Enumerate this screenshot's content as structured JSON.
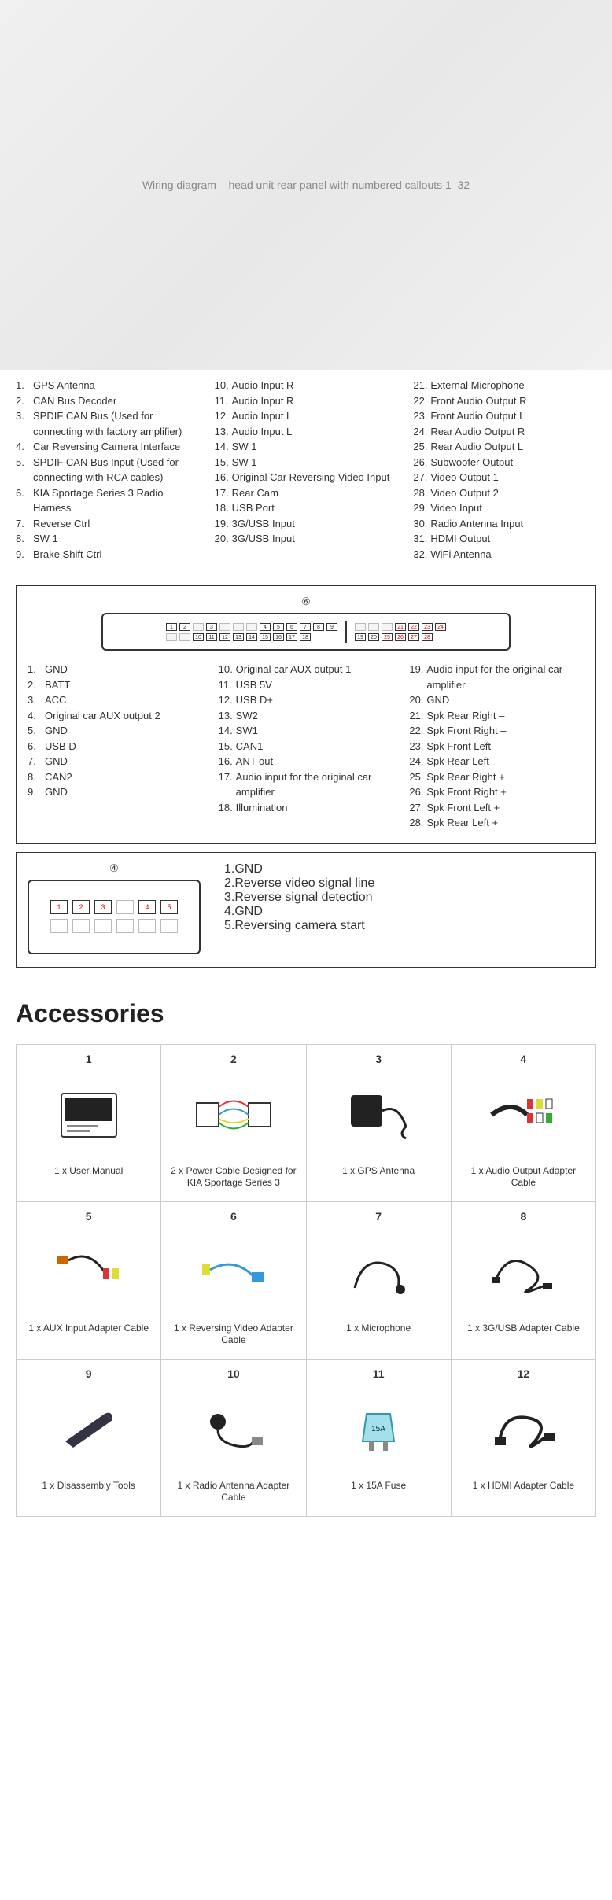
{
  "hero_alt": "Wiring diagram – head unit rear panel with numbered callouts 1–32",
  "main_legend": {
    "col1": [
      {
        "n": "1.",
        "t": "GPS Antenna"
      },
      {
        "n": "2.",
        "t": "CAN Bus Decoder"
      },
      {
        "n": "3.",
        "t": "SPDIF CAN Bus (Used for connecting with factory amplifier)"
      },
      {
        "n": "4.",
        "t": "Car Reversing Camera Interface"
      },
      {
        "n": "5.",
        "t": "SPDIF CAN Bus Input (Used for connecting with RCA cables)"
      },
      {
        "n": "6.",
        "t": "KIA Sportage Series 3 Radio Harness"
      },
      {
        "n": "7.",
        "t": "Reverse Ctrl"
      },
      {
        "n": "8.",
        "t": "SW 1"
      },
      {
        "n": "9.",
        "t": "Brake Shift Ctrl"
      }
    ],
    "col2": [
      {
        "n": "10.",
        "t": "Audio Input R"
      },
      {
        "n": "11.",
        "t": "Audio Input R"
      },
      {
        "n": "12.",
        "t": "Audio Input L"
      },
      {
        "n": "13.",
        "t": "Audio Input L"
      },
      {
        "n": "14.",
        "t": "SW 1"
      },
      {
        "n": "15.",
        "t": "SW 1"
      },
      {
        "n": "16.",
        "t": "Original Car Reversing Video Input"
      },
      {
        "n": "17.",
        "t": "Rear Cam"
      },
      {
        "n": "18.",
        "t": "USB Port"
      },
      {
        "n": "19.",
        "t": "3G/USB Input"
      },
      {
        "n": "20.",
        "t": "3G/USB Input"
      }
    ],
    "col3": [
      {
        "n": "21.",
        "t": "External Microphone"
      },
      {
        "n": "22.",
        "t": "Front Audio Output R"
      },
      {
        "n": "23.",
        "t": "Front Audio Output L"
      },
      {
        "n": "24.",
        "t": "Rear Audio Output R"
      },
      {
        "n": "25.",
        "t": "Rear Audio Output L"
      },
      {
        "n": "26.",
        "t": "Subwoofer Output"
      },
      {
        "n": "27.",
        "t": "Video Output 1"
      },
      {
        "n": "28.",
        "t": "Video Output 2"
      },
      {
        "n": "29.",
        "t": "Video Input"
      },
      {
        "n": "30.",
        "t": "Radio Antenna Input"
      },
      {
        "n": "31.",
        "t": "HDMI Output"
      },
      {
        "n": "32.",
        "t": "WiFi Antenna"
      }
    ]
  },
  "box6": {
    "number": "⑥",
    "pins_top_left": [
      "1",
      "2",
      "",
      "3",
      "",
      "",
      "",
      "4",
      "5"
    ],
    "pins_bot_left": [
      "",
      "",
      "10",
      "11",
      "12",
      "13",
      "14",
      "15",
      "16",
      "17",
      "18"
    ],
    "pins_top_right_red": [
      "",
      "",
      "",
      "21",
      "22",
      "23",
      "24"
    ],
    "pins_bot_right_red": [
      "25",
      "26",
      "27",
      "28"
    ],
    "pins_top_left2": [
      "6",
      "7",
      "8",
      "9"
    ],
    "pins_bot_right_black": [
      "19",
      "20"
    ],
    "legend": {
      "col1": [
        {
          "n": "1.",
          "t": "GND"
        },
        {
          "n": "2.",
          "t": "BATT"
        },
        {
          "n": "3.",
          "t": "ACC"
        },
        {
          "n": "4.",
          "t": "Original car AUX output 2"
        },
        {
          "n": "5.",
          "t": "GND"
        },
        {
          "n": "6.",
          "t": "USB D-"
        },
        {
          "n": "7.",
          "t": "GND"
        },
        {
          "n": "8.",
          "t": "CAN2"
        },
        {
          "n": "9.",
          "t": "GND"
        }
      ],
      "col2": [
        {
          "n": "10.",
          "t": "Original car AUX output 1"
        },
        {
          "n": "11.",
          "t": "USB 5V"
        },
        {
          "n": "12.",
          "t": "USB D+"
        },
        {
          "n": "13.",
          "t": "SW2"
        },
        {
          "n": "14.",
          "t": "SW1"
        },
        {
          "n": "15.",
          "t": "CAN1"
        },
        {
          "n": "16.",
          "t": "ANT out"
        },
        {
          "n": "17.",
          "t": "Audio input for the original car amplifier"
        },
        {
          "n": "18.",
          "t": "Illumination"
        }
      ],
      "col3": [
        {
          "n": "19.",
          "t": "Audio input for the original car amplifier"
        },
        {
          "n": "20.",
          "t": "GND"
        },
        {
          "n": "21.",
          "t": "Spk Rear Right –"
        },
        {
          "n": "22.",
          "t": "Spk Front Right –"
        },
        {
          "n": "23.",
          "t": "Spk Front Left –"
        },
        {
          "n": "24.",
          "t": "Spk Rear Left –"
        },
        {
          "n": "25.",
          "t": "Spk Rear Right +"
        },
        {
          "n": "26.",
          "t": "Spk Front Right +"
        },
        {
          "n": "27.",
          "t": "Spk Front Left +"
        },
        {
          "n": "28.",
          "t": "Spk Rear Left +"
        }
      ]
    }
  },
  "box4": {
    "number": "④",
    "pins_top": [
      "1",
      "2",
      "3",
      "",
      "4",
      "5"
    ],
    "legend": [
      {
        "n": "1.",
        "t": "GND"
      },
      {
        "n": "2.",
        "t": "Reverse video signal line"
      },
      {
        "n": "3.",
        "t": "Reverse signal detection"
      },
      {
        "n": "4.",
        "t": "GND"
      },
      {
        "n": "5.",
        "t": "Reversing camera start"
      }
    ]
  },
  "accessories": {
    "title": "Accessories",
    "items": [
      {
        "n": "1",
        "caption": "1 x User Manual",
        "icon": "manual"
      },
      {
        "n": "2",
        "caption": "2 x Power Cable Designed for KIA Sportage Series 3",
        "icon": "harness"
      },
      {
        "n": "3",
        "caption": "1 x GPS Antenna",
        "icon": "gps"
      },
      {
        "n": "4",
        "caption": "1 x Audio Output Adapter Cable",
        "icon": "rca-bundle"
      },
      {
        "n": "5",
        "caption": "1 x AUX Input Adapter Cable",
        "icon": "aux"
      },
      {
        "n": "6",
        "caption": "1 x Reversing Video Adapter Cable",
        "icon": "rev-video"
      },
      {
        "n": "7",
        "caption": "1 x Microphone",
        "icon": "mic"
      },
      {
        "n": "8",
        "caption": "1 x 3G/USB Adapter Cable",
        "icon": "usb-cable"
      },
      {
        "n": "9",
        "caption": "1 x Disassembly Tools",
        "icon": "pry-tool"
      },
      {
        "n": "10",
        "caption": "1 x Radio Antenna Adapter Cable",
        "icon": "antenna-adapter"
      },
      {
        "n": "11",
        "caption": "1 x 15A Fuse",
        "icon": "fuse"
      },
      {
        "n": "12",
        "caption": "1 x HDMI Adapter Cable",
        "icon": "hdmi"
      }
    ]
  },
  "colors": {
    "text": "#333333",
    "border": "#333333",
    "grid_border": "#cccccc",
    "red_pin": "#dd0000",
    "bg": "#ffffff"
  }
}
